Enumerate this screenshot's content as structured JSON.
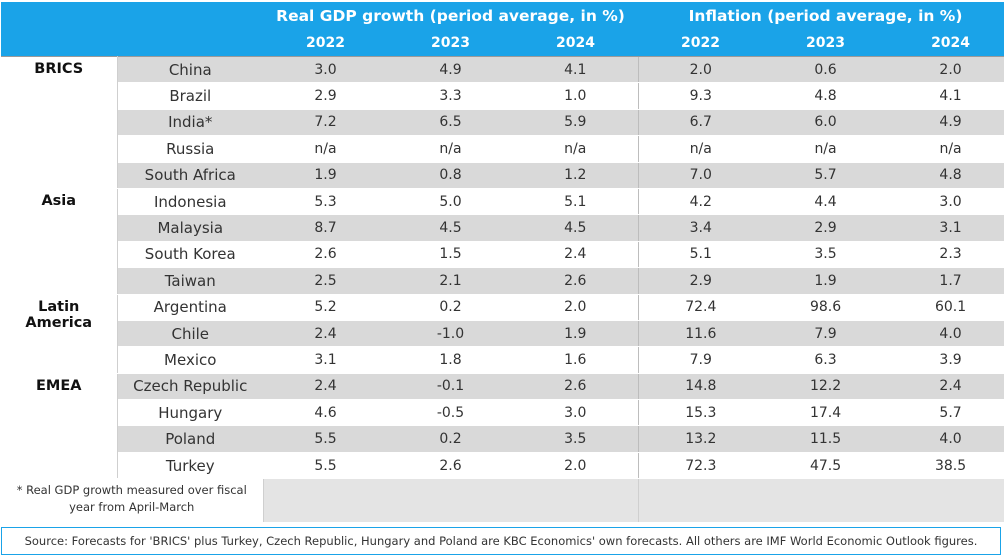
{
  "header": {
    "gdp_title": "Real GDP growth (period average, in %)",
    "inflation_title": "Inflation (period average, in %)",
    "years": [
      "2022",
      "2023",
      "2024"
    ]
  },
  "groups": [
    {
      "region": "BRICS",
      "rows": [
        {
          "country": "China",
          "gdp": [
            "3.0",
            "4.9",
            "4.1"
          ],
          "infl": [
            "2.0",
            "0.6",
            "2.0"
          ]
        },
        {
          "country": "Brazil",
          "gdp": [
            "2.9",
            "3.3",
            "1.0"
          ],
          "infl": [
            "9.3",
            "4.8",
            "4.1"
          ]
        },
        {
          "country": "India*",
          "gdp": [
            "7.2",
            "6.5",
            "5.9"
          ],
          "infl": [
            "6.7",
            "6.0",
            "4.9"
          ]
        },
        {
          "country": "Russia",
          "gdp": [
            "n/a",
            "n/a",
            "n/a"
          ],
          "infl": [
            "n/a",
            "n/a",
            "n/a"
          ]
        },
        {
          "country": "South Africa",
          "gdp": [
            "1.9",
            "0.8",
            "1.2"
          ],
          "infl": [
            "7.0",
            "5.7",
            "4.8"
          ]
        }
      ]
    },
    {
      "region": "Asia",
      "rows": [
        {
          "country": "Indonesia",
          "gdp": [
            "5.3",
            "5.0",
            "5.1"
          ],
          "infl": [
            "4.2",
            "4.4",
            "3.0"
          ]
        },
        {
          "country": "Malaysia",
          "gdp": [
            "8.7",
            "4.5",
            "4.5"
          ],
          "infl": [
            "3.4",
            "2.9",
            "3.1"
          ]
        },
        {
          "country": "South Korea",
          "gdp": [
            "2.6",
            "1.5",
            "2.4"
          ],
          "infl": [
            "5.1",
            "3.5",
            "2.3"
          ]
        },
        {
          "country": "Taiwan",
          "gdp": [
            "2.5",
            "2.1",
            "2.6"
          ],
          "infl": [
            "2.9",
            "1.9",
            "1.7"
          ]
        }
      ]
    },
    {
      "region": "Latin America",
      "region_lines": [
        "Latin",
        "America"
      ],
      "rows": [
        {
          "country": "Argentina",
          "gdp": [
            "5.2",
            "0.2",
            "2.0"
          ],
          "infl": [
            "72.4",
            "98.6",
            "60.1"
          ]
        },
        {
          "country": "Chile",
          "gdp": [
            "2.4",
            "-1.0",
            "1.9"
          ],
          "infl": [
            "11.6",
            "7.9",
            "4.0"
          ]
        },
        {
          "country": "Mexico",
          "gdp": [
            "3.1",
            "1.8",
            "1.6"
          ],
          "infl": [
            "7.9",
            "6.3",
            "3.9"
          ]
        }
      ]
    },
    {
      "region": "EMEA",
      "rows": [
        {
          "country": "Czech Republic",
          "gdp": [
            "2.4",
            "-0.1",
            "2.6"
          ],
          "infl": [
            "14.8",
            "12.2",
            "2.4"
          ]
        },
        {
          "country": "Hungary",
          "gdp": [
            "4.6",
            "-0.5",
            "3.0"
          ],
          "infl": [
            "15.3",
            "17.4",
            "5.7"
          ]
        },
        {
          "country": "Poland",
          "gdp": [
            "5.5",
            "0.2",
            "3.5"
          ],
          "infl": [
            "13.2",
            "11.5",
            "4.0"
          ]
        },
        {
          "country": "Turkey",
          "gdp": [
            "5.5",
            "2.6",
            "2.0"
          ],
          "infl": [
            "72.3",
            "47.5",
            "38.5"
          ]
        }
      ]
    }
  ],
  "footnote": "* Real GDP growth measured over fiscal year from April-March",
  "source": "Source: Forecasts for 'BRICS' plus Turkey, Czech Republic, Hungary and Poland are KBC Economics' own forecasts. All others are IMF World Economic Outlook figures.",
  "colors": {
    "header_bg": "#1aa3e8",
    "header_text": "#ffffff",
    "row_shade": "#d9d9d9"
  }
}
